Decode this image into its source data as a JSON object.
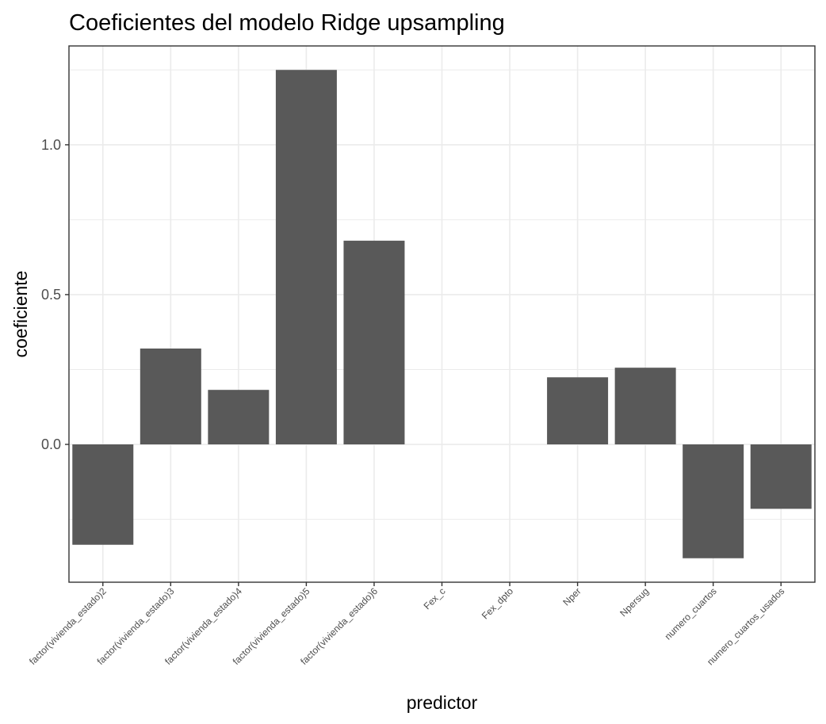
{
  "chart_data": {
    "type": "bar",
    "title": "Coeficientes del modelo Ridge upsampling",
    "xlabel": "predictor",
    "ylabel": "coeficiente",
    "categories": [
      "factor(vivienda_estado)2",
      "factor(vivienda_estado)3",
      "factor(vivienda_estado)4",
      "factor(vivienda_estado)5",
      "factor(vivienda_estado)6",
      "Fex_c",
      "Fex_dpto",
      "Nper",
      "Npersug",
      "numero_cuartos",
      "numero_cuartos_usados"
    ],
    "values": [
      -0.335,
      0.32,
      0.182,
      1.25,
      0.68,
      0.0,
      0.0,
      0.224,
      0.256,
      -0.38,
      -0.215
    ],
    "ylim": [
      -0.46,
      1.33
    ],
    "yticks": [
      0.0,
      0.5,
      1.0
    ],
    "ytick_labels": [
      "0.0",
      "0.5",
      "1.0"
    ],
    "grid": true,
    "legend": "none",
    "bar_color": "#595959",
    "grid_color": "#ebebeb",
    "panel_border_color": "#333333"
  }
}
